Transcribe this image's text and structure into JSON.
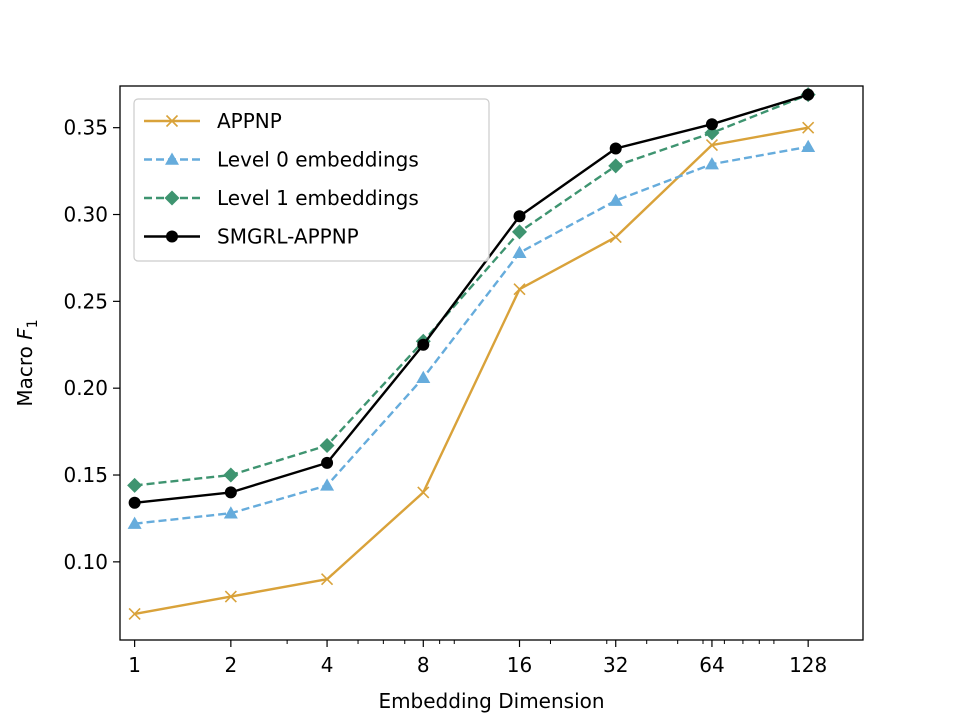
{
  "chart_data": {
    "type": "line",
    "xlabel": "Embedding Dimension",
    "ylabel_prefix": "Macro ",
    "ylabel_var": "F",
    "ylabel_sub": "1",
    "x_scale": "log2",
    "x": [
      1,
      2,
      4,
      8,
      16,
      32,
      64,
      128
    ],
    "x_tick_labels": [
      "1",
      "2",
      "4",
      "8",
      "16",
      "32",
      "64",
      "128"
    ],
    "xlim": [
      0.9,
      190
    ],
    "ylim": [
      0.055,
      0.374
    ],
    "y_ticks": [
      0.1,
      0.15,
      0.2,
      0.25,
      0.3,
      0.35
    ],
    "y_tick_labels": [
      "0.10",
      "0.15",
      "0.20",
      "0.25",
      "0.30",
      "0.35"
    ],
    "legend_position": "upper-left",
    "series": [
      {
        "name": "APPNP",
        "color": "#d9a23a",
        "dash": "solid",
        "marker": "x",
        "values": [
          0.07,
          0.08,
          0.09,
          0.14,
          0.257,
          0.287,
          0.34,
          0.35
        ]
      },
      {
        "name": "Level 0 embeddings",
        "color": "#66acdc",
        "dash": "dashed",
        "marker": "triangle",
        "values": [
          0.122,
          0.128,
          0.144,
          0.206,
          0.278,
          0.308,
          0.329,
          0.339
        ]
      },
      {
        "name": "Level 1 embeddings",
        "color": "#3e9470",
        "dash": "dashed",
        "marker": "diamond",
        "values": [
          0.144,
          0.15,
          0.167,
          0.227,
          0.29,
          0.328,
          0.347,
          0.369
        ]
      },
      {
        "name": "SMGRL-APPNP",
        "color": "#000000",
        "dash": "solid",
        "marker": "circle",
        "values": [
          0.134,
          0.14,
          0.157,
          0.225,
          0.299,
          0.338,
          0.352,
          0.369
        ]
      }
    ]
  }
}
